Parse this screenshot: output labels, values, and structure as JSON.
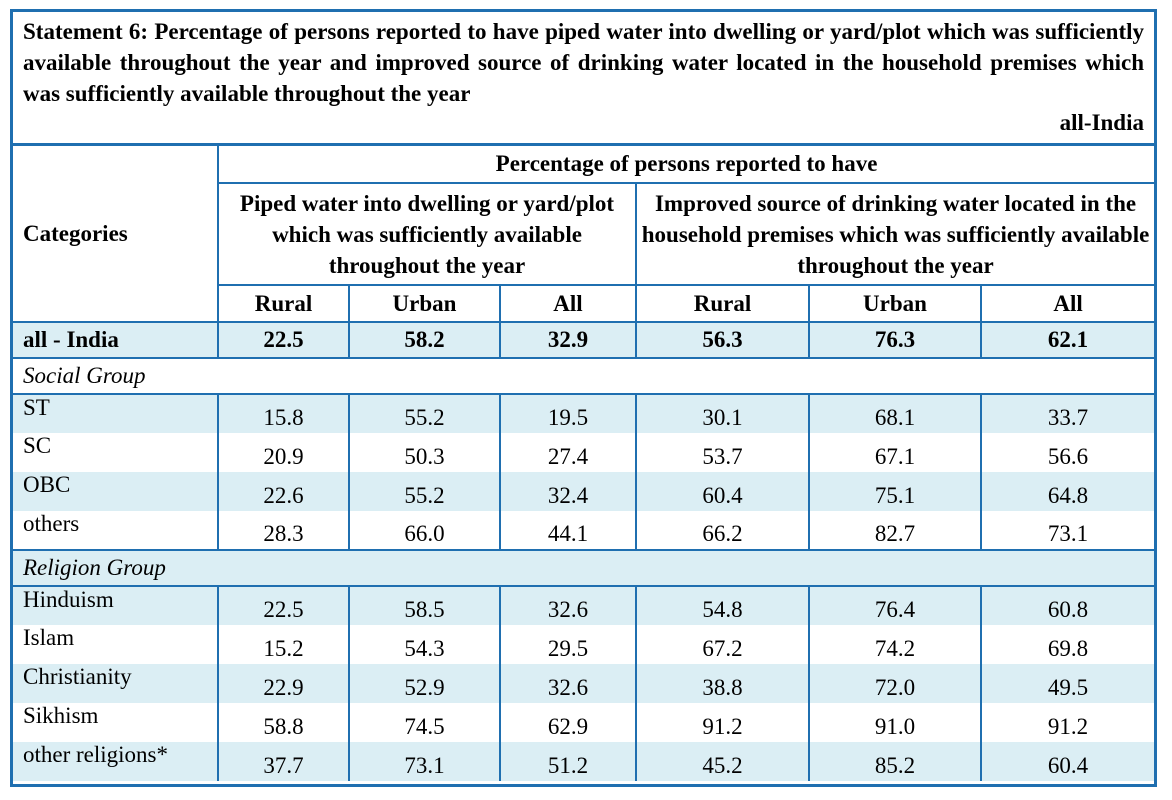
{
  "statement": {
    "title": "Statement 6: Percentage of persons reported to have piped water into dwelling or yard/plot which was sufficiently available throughout the year and improved source of drinking water located in the household premises which was sufficiently available throughout the year",
    "region": "all-India"
  },
  "table": {
    "categories_header": "Categories",
    "top_header": "Percentage of persons reported to have",
    "group1_header": "Piped water into dwelling or yard/plot which was sufficiently available throughout the year",
    "group2_header": "Improved source of drinking water located in the household premises which was sufficiently available throughout the year",
    "sub_headers": [
      "Rural",
      "Urban",
      "All",
      "Rural",
      "Urban",
      "All"
    ],
    "total_row": {
      "label": "all - India",
      "values": [
        "22.5",
        "58.2",
        "32.9",
        "56.3",
        "76.3",
        "62.1"
      ]
    },
    "sections": [
      {
        "title": "Social Group",
        "rows": [
          {
            "label": "ST",
            "values": [
              "15.8",
              "55.2",
              "19.5",
              "30.1",
              "68.1",
              "33.7"
            ]
          },
          {
            "label": "SC",
            "values": [
              "20.9",
              "50.3",
              "27.4",
              "53.7",
              "67.1",
              "56.6"
            ]
          },
          {
            "label": "OBC",
            "values": [
              "22.6",
              "55.2",
              "32.4",
              "60.4",
              "75.1",
              "64.8"
            ]
          },
          {
            "label": "others",
            "values": [
              "28.3",
              "66.0",
              "44.1",
              "66.2",
              "82.7",
              "73.1"
            ]
          }
        ]
      },
      {
        "title": "Religion Group",
        "rows": [
          {
            "label": "Hinduism",
            "values": [
              "22.5",
              "58.5",
              "32.6",
              "54.8",
              "76.4",
              "60.8"
            ]
          },
          {
            "label": "Islam",
            "values": [
              "15.2",
              "54.3",
              "29.5",
              "67.2",
              "74.2",
              "69.8"
            ]
          },
          {
            "label": "Christianity",
            "values": [
              "22.9",
              "52.9",
              "32.6",
              "38.8",
              "72.0",
              "49.5"
            ]
          },
          {
            "label": "Sikhism",
            "values": [
              "58.8",
              "74.5",
              "62.9",
              "91.2",
              "91.0",
              "91.2"
            ]
          },
          {
            "label": "other religions*",
            "values": [
              "37.7",
              "73.1",
              "51.2",
              "45.2",
              "85.2",
              "60.4"
            ]
          }
        ]
      }
    ]
  }
}
